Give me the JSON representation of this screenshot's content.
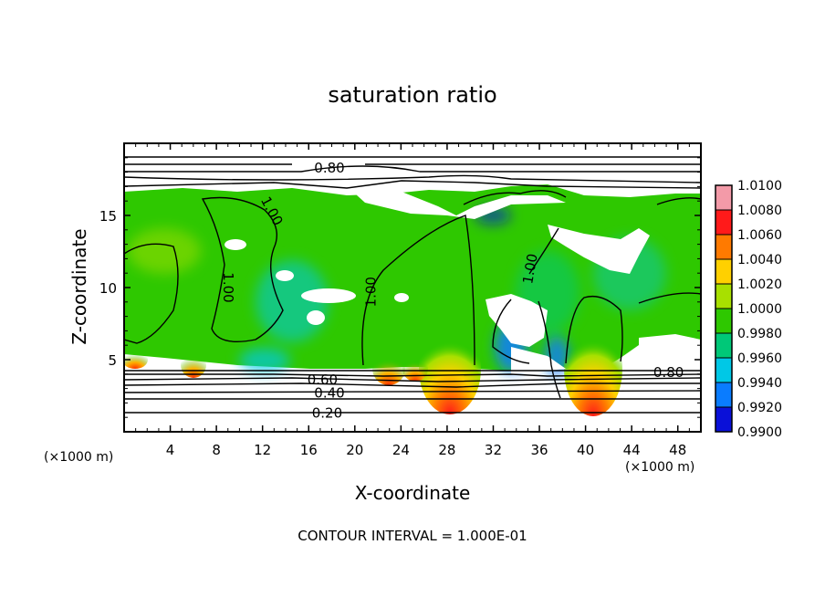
{
  "chart_data": {
    "type": "heatmap",
    "title": "saturation ratio",
    "xlabel": "X-coordinate",
    "ylabel": "Z-coordinate",
    "x_unit": "(×1000 m)",
    "z_unit": "(×1000 m)",
    "xlim": [
      0,
      50
    ],
    "ylim": [
      0,
      20
    ],
    "x_ticks": [
      4,
      8,
      12,
      16,
      20,
      24,
      28,
      32,
      36,
      40,
      44,
      48
    ],
    "y_ticks": [
      5,
      10,
      15
    ],
    "footer": "CONTOUR INTERVAL = 1.000E-01",
    "colorbar": {
      "levels": [
        "1.0100",
        "1.0080",
        "1.0060",
        "1.0040",
        "1.0020",
        "1.0000",
        "0.9980",
        "0.9960",
        "0.9940",
        "0.9920",
        "0.9900"
      ],
      "colors": [
        "#f39aa8",
        "#ff1a1a",
        "#ff7a00",
        "#ffd000",
        "#a8e000",
        "#2ec800",
        "#00c878",
        "#00c8e6",
        "#0a7cff",
        "#0a10d8",
        "#7a0aa0"
      ]
    },
    "contour_labels": [
      {
        "text": "0.80",
        "x": 17.8,
        "z": 18.3
      },
      {
        "text": "1.00",
        "x": 12.8,
        "z": 15.3,
        "rot": 62
      },
      {
        "text": "1.00",
        "x": 9.0,
        "z": 10.0,
        "rot": 90
      },
      {
        "text": "1.00",
        "x": 21.4,
        "z": 9.7,
        "rot": -90
      },
      {
        "text": "1.00",
        "x": 35.2,
        "z": 11.3,
        "rot": -80
      },
      {
        "text": "0.80",
        "x": 47.2,
        "z": 4.1
      },
      {
        "text": "0.60",
        "x": 17.2,
        "z": 3.6
      },
      {
        "text": "0.40",
        "x": 17.8,
        "z": 2.7
      },
      {
        "text": "0.20",
        "x": 17.6,
        "z": 1.3
      }
    ],
    "grid": false,
    "legend": "right"
  }
}
